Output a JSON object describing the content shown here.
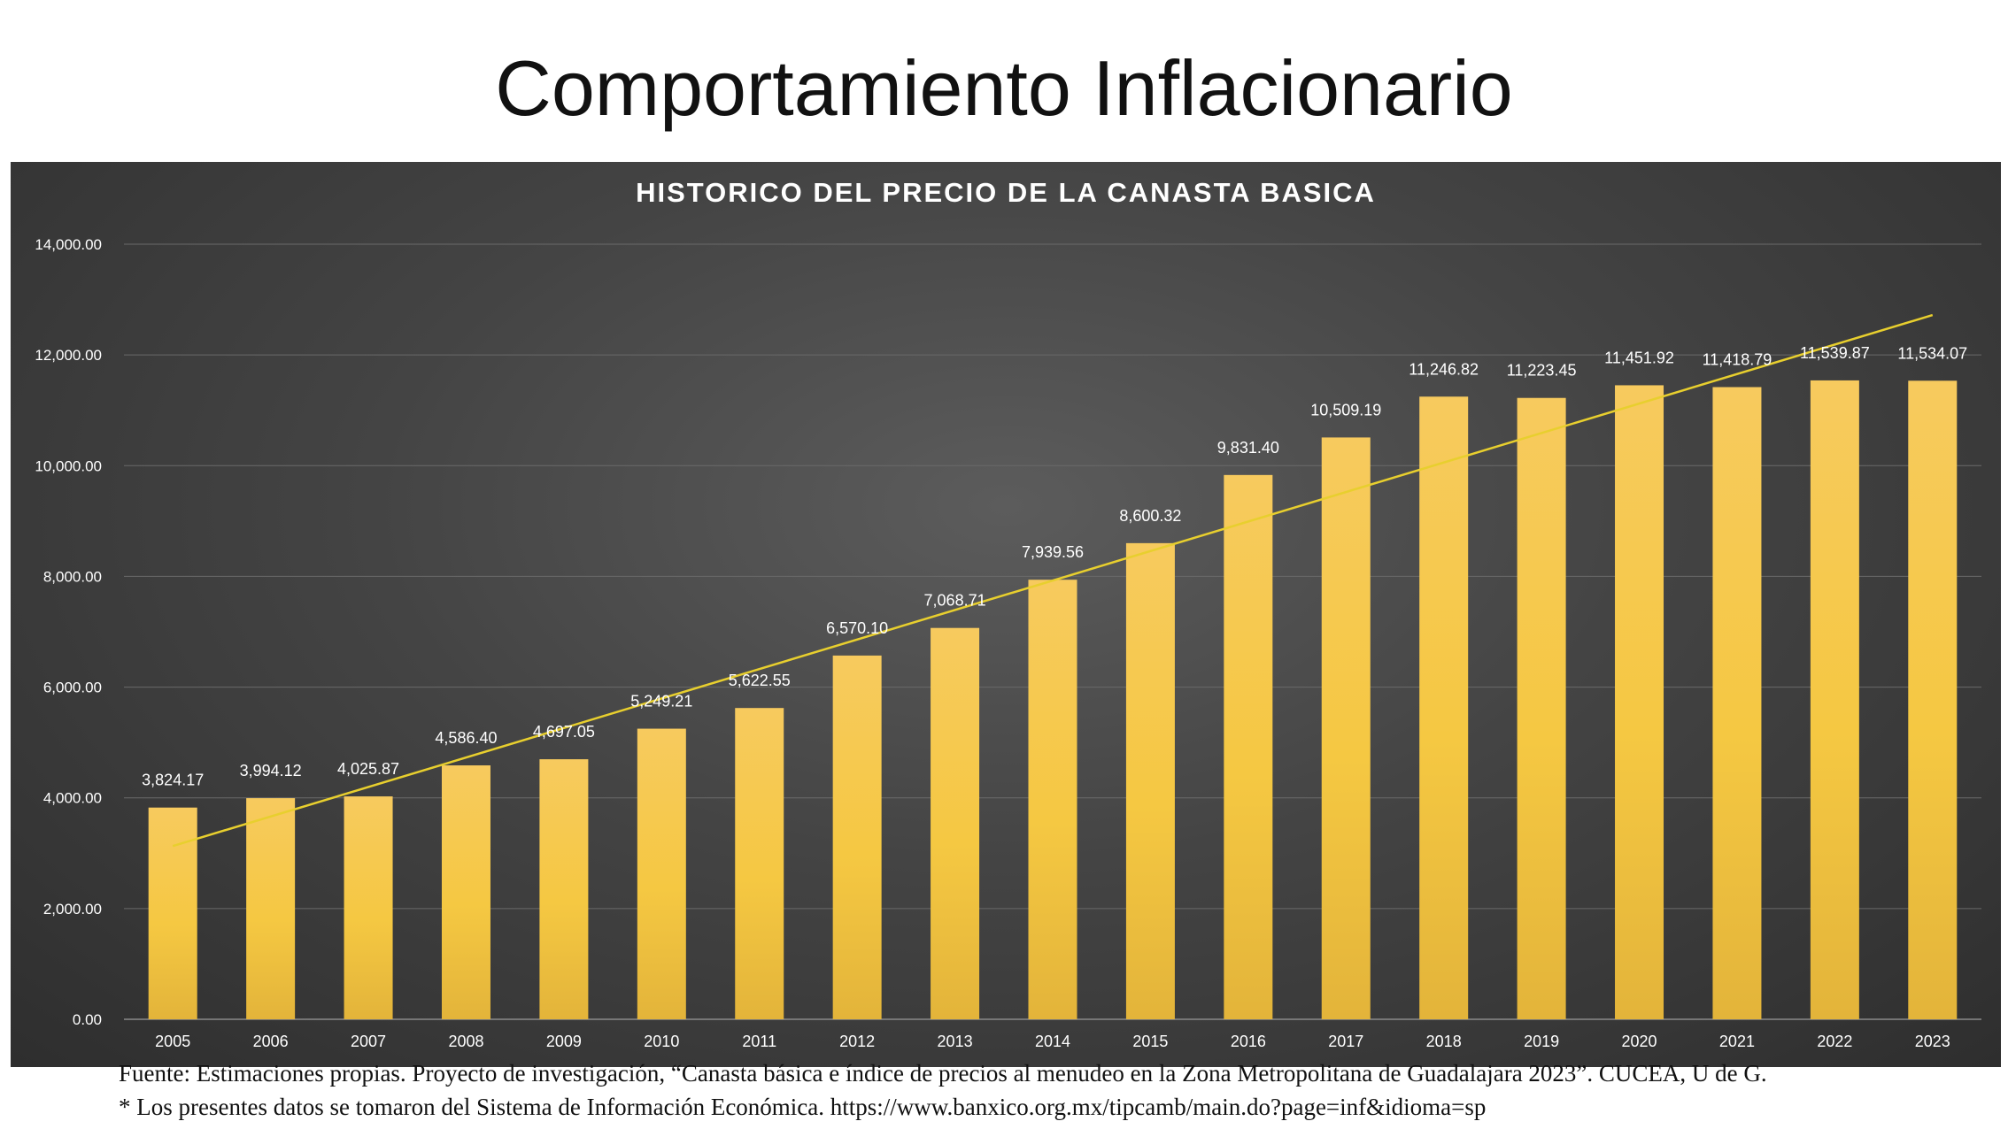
{
  "slide": {
    "title": "Comportamiento Inflacionario",
    "footer_source": "Fuente: Estimaciones propias. Proyecto de investigación, “Canasta básica e índice de precios al menudeo en la Zona Metropolitana de Guadalajara 2023”. CUCEA, U de G.",
    "footer_note": "* Los presentes datos se tomaron del Sistema de Información Económica. https://www.banxico.org.mx/tipcamb/main.do?page=inf&idioma=sp"
  },
  "colors": {
    "bar": "#f5c842",
    "trendline": "#e8cf2e",
    "gridline": "#6a6a6a",
    "text": "#ffffff",
    "background_dark": "#2e2e2e"
  },
  "chart_data": {
    "type": "bar",
    "title": "HISTORICO DEL PRECIO DE LA CANASTA BASICA",
    "categories": [
      "2005",
      "2006",
      "2007",
      "2008",
      "2009",
      "2010",
      "2011",
      "2012",
      "2013",
      "2014",
      "2015",
      "2016",
      "2017",
      "2018",
      "2019",
      "2020",
      "2021",
      "2022",
      "2023"
    ],
    "values": [
      3824.17,
      3994.12,
      4025.87,
      4586.4,
      4697.05,
      5249.21,
      5622.55,
      6570.1,
      7068.71,
      7939.56,
      8600.32,
      9831.4,
      10509.19,
      11246.82,
      11223.45,
      11451.92,
      11418.79,
      11539.87,
      11534.07
    ],
    "data_labels": [
      "3,824.17",
      "3,994.12",
      "4,025.87",
      "4,586.40",
      "4,697.05",
      "5,249.21",
      "5,622.55",
      "6,570.10",
      "7,068.71",
      "7,939.56",
      "8,600.32",
      "9,831.40",
      "10,509.19",
      "11,246.82",
      "11,223.45",
      "11,451.92",
      "11,418.79",
      "11,539.87",
      "11,534.07"
    ],
    "ylim": [
      0,
      14000
    ],
    "y_ticks": [
      0,
      2000,
      4000,
      6000,
      8000,
      10000,
      12000,
      14000
    ],
    "y_tick_labels": [
      "0.00",
      "2,000.00",
      "4,000.00",
      "6,000.00",
      "8,000.00",
      "10,000.00",
      "12,000.00",
      "14,000.00"
    ],
    "grid": true,
    "trendline": {
      "type": "linear",
      "start_value": 3130,
      "end_value": 12720
    },
    "xlabel": "",
    "ylabel": ""
  }
}
